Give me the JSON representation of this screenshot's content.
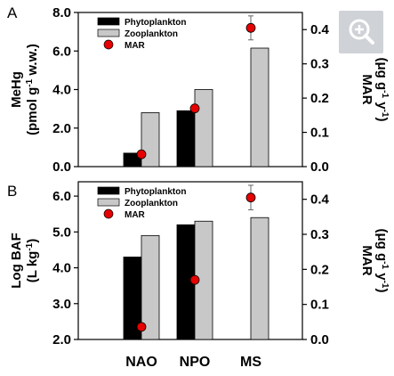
{
  "chart_data": [
    {
      "type": "bar",
      "panel_label": "A",
      "categories": [
        "NAO",
        "NPO",
        "MS"
      ],
      "ylabel_left": [
        "MeHg",
        "(pmol g-1 w.w.)"
      ],
      "ylabel_right": [
        "MAR",
        "(μg g-1 y-1)"
      ],
      "ylim_left": [
        0,
        8
      ],
      "ylim_right": [
        0,
        0.45
      ],
      "yticks_left": [
        "0.0",
        "2.0",
        "4.0",
        "6.0",
        "8.0"
      ],
      "yticks_right": [
        "0.0",
        "0.1",
        "0.2",
        "0.3",
        "0.4"
      ],
      "series": [
        {
          "name": "Phytoplankton",
          "axis": "left",
          "kind": "bar",
          "color": "#000000",
          "values": [
            0.7,
            2.9,
            null
          ]
        },
        {
          "name": "Zooplankton",
          "axis": "left",
          "kind": "bar",
          "color": "#c8c8c8",
          "values": [
            2.8,
            4.0,
            6.15
          ]
        },
        {
          "name": "MAR",
          "axis": "right",
          "kind": "point",
          "color": "#e60000",
          "values": [
            0.036,
            0.17,
            0.405
          ],
          "error": [
            null,
            null,
            0.035
          ]
        }
      ],
      "legend_position": "top-left"
    },
    {
      "type": "bar",
      "panel_label": "B",
      "categories": [
        "NAO",
        "NPO",
        "MS"
      ],
      "ylabel_left": [
        "Log BAF",
        "(L kg-1)"
      ],
      "ylabel_right": [
        "MAR",
        "(μg g-1 y-1)"
      ],
      "ylim_left": [
        2,
        6.4
      ],
      "ylim_right": [
        0,
        0.45
      ],
      "yticks_left": [
        "2.0",
        "3.0",
        "4.0",
        "5.0",
        "6.0"
      ],
      "yticks_right": [
        "0.0",
        "0.1",
        "0.2",
        "0.3",
        "0.4"
      ],
      "series": [
        {
          "name": "Phytoplankton",
          "axis": "left",
          "kind": "bar",
          "color": "#000000",
          "values": [
            4.3,
            5.2,
            null
          ]
        },
        {
          "name": "Zooplankton",
          "axis": "left",
          "kind": "bar",
          "color": "#c8c8c8",
          "values": [
            4.9,
            5.3,
            5.4
          ]
        },
        {
          "name": "MAR",
          "axis": "right",
          "kind": "point",
          "color": "#e60000",
          "values": [
            0.036,
            0.17,
            0.405
          ],
          "error": [
            null,
            null,
            0.035
          ]
        }
      ],
      "legend_position": "top-left"
    }
  ],
  "ui": {
    "zoom_icon": "zoom-in-icon"
  }
}
